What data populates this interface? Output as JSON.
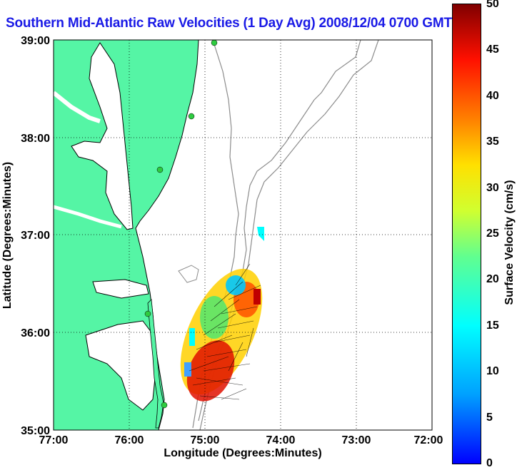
{
  "title": "Southern Mid-Atlantic Raw Velocities (1 Day Avg) 2008/12/04 0700 GMT",
  "axes": {
    "xlabel": "Longitude (Degrees:Minutes)",
    "ylabel": "Latitude (Degrees:Minutes)",
    "x_ticks": [
      "77:00",
      "76:00",
      "75:00",
      "74:00",
      "73:00",
      "72:00"
    ],
    "y_ticks": [
      "39:00",
      "38:00",
      "37:00",
      "36:00",
      "35:00"
    ]
  },
  "colorbar": {
    "label": "Surface Velocity (cm/s)",
    "ticks": [
      "50",
      "45",
      "40",
      "35",
      "30",
      "25",
      "20",
      "15",
      "10",
      "5",
      "0"
    ],
    "range": [
      0,
      50
    ]
  },
  "colors": {
    "land": "#55f5a5",
    "coast": "#000000",
    "bathymetry": "#8c8c8c",
    "title": "#1a1ae6",
    "station": "#2ecc40"
  }
}
